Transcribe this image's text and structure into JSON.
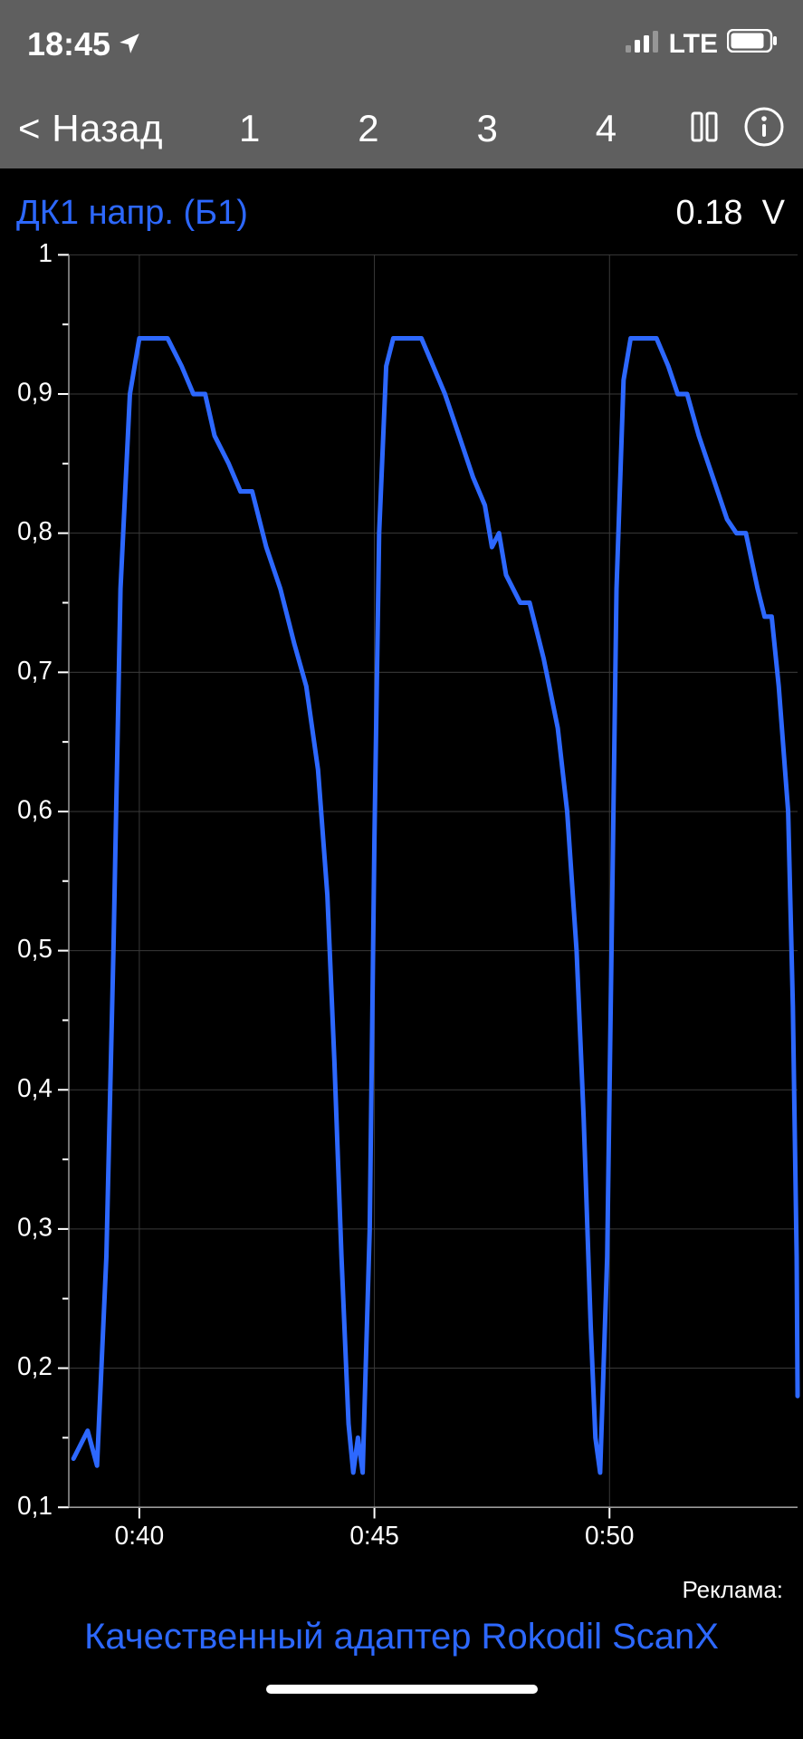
{
  "status": {
    "time": "18:45",
    "network_label": "LTE"
  },
  "nav": {
    "back_label": "< Назад",
    "tabs": [
      "1",
      "2",
      "3",
      "4"
    ]
  },
  "sensor": {
    "name": "ДК1 напр. (Б1)",
    "value": "0.18",
    "unit": "V",
    "name_color": "#2d68ff",
    "value_color": "#ffffff"
  },
  "chart": {
    "type": "line",
    "background_color": "#000000",
    "grid_color": "#3a3a3a",
    "axis_color": "#9a9a9a",
    "tick_mark_color": "#ffffff",
    "line_color": "#2d68ff",
    "line_width": 5,
    "tick_fontsize": 28,
    "ylim": [
      0.1,
      1.0
    ],
    "yticks": [
      0.1,
      0.2,
      0.3,
      0.4,
      0.5,
      0.6,
      0.7,
      0.8,
      0.9,
      1.0
    ],
    "ytick_labels": [
      "0,1",
      "0,2",
      "0,3",
      "0,4",
      "0,5",
      "0,6",
      "0,7",
      "0,8",
      "0,9",
      "1"
    ],
    "y_minor_ticks": [
      0.15,
      0.25,
      0.35,
      0.45,
      0.55,
      0.65,
      0.75,
      0.85,
      0.95
    ],
    "xlim": [
      38.5,
      54.0
    ],
    "xticks": [
      40,
      45,
      50
    ],
    "xtick_labels": [
      "0:40",
      "0:45",
      "0:50"
    ],
    "series": [
      {
        "x": 38.6,
        "y": 0.135
      },
      {
        "x": 38.9,
        "y": 0.155
      },
      {
        "x": 39.1,
        "y": 0.13
      },
      {
        "x": 39.3,
        "y": 0.28
      },
      {
        "x": 39.45,
        "y": 0.5
      },
      {
        "x": 39.6,
        "y": 0.76
      },
      {
        "x": 39.8,
        "y": 0.9
      },
      {
        "x": 40.0,
        "y": 0.94
      },
      {
        "x": 40.6,
        "y": 0.94
      },
      {
        "x": 40.9,
        "y": 0.92
      },
      {
        "x": 41.15,
        "y": 0.9
      },
      {
        "x": 41.4,
        "y": 0.9
      },
      {
        "x": 41.6,
        "y": 0.87
      },
      {
        "x": 41.9,
        "y": 0.85
      },
      {
        "x": 42.15,
        "y": 0.83
      },
      {
        "x": 42.4,
        "y": 0.83
      },
      {
        "x": 42.7,
        "y": 0.79
      },
      {
        "x": 43.0,
        "y": 0.76
      },
      {
        "x": 43.3,
        "y": 0.72
      },
      {
        "x": 43.55,
        "y": 0.69
      },
      {
        "x": 43.8,
        "y": 0.63
      },
      {
        "x": 44.0,
        "y": 0.54
      },
      {
        "x": 44.15,
        "y": 0.42
      },
      {
        "x": 44.3,
        "y": 0.28
      },
      {
        "x": 44.45,
        "y": 0.16
      },
      {
        "x": 44.55,
        "y": 0.125
      },
      {
        "x": 44.65,
        "y": 0.15
      },
      {
        "x": 44.75,
        "y": 0.125
      },
      {
        "x": 44.9,
        "y": 0.3
      },
      {
        "x": 45.0,
        "y": 0.58
      },
      {
        "x": 45.1,
        "y": 0.8
      },
      {
        "x": 45.25,
        "y": 0.92
      },
      {
        "x": 45.4,
        "y": 0.94
      },
      {
        "x": 46.0,
        "y": 0.94
      },
      {
        "x": 46.25,
        "y": 0.92
      },
      {
        "x": 46.5,
        "y": 0.9
      },
      {
        "x": 46.8,
        "y": 0.87
      },
      {
        "x": 47.1,
        "y": 0.84
      },
      {
        "x": 47.35,
        "y": 0.82
      },
      {
        "x": 47.5,
        "y": 0.79
      },
      {
        "x": 47.65,
        "y": 0.8
      },
      {
        "x": 47.8,
        "y": 0.77
      },
      {
        "x": 48.1,
        "y": 0.75
      },
      {
        "x": 48.3,
        "y": 0.75
      },
      {
        "x": 48.6,
        "y": 0.71
      },
      {
        "x": 48.9,
        "y": 0.66
      },
      {
        "x": 49.1,
        "y": 0.6
      },
      {
        "x": 49.3,
        "y": 0.5
      },
      {
        "x": 49.45,
        "y": 0.38
      },
      {
        "x": 49.6,
        "y": 0.23
      },
      {
        "x": 49.7,
        "y": 0.15
      },
      {
        "x": 49.8,
        "y": 0.125
      },
      {
        "x": 49.95,
        "y": 0.28
      },
      {
        "x": 50.05,
        "y": 0.52
      },
      {
        "x": 50.15,
        "y": 0.76
      },
      {
        "x": 50.3,
        "y": 0.91
      },
      {
        "x": 50.45,
        "y": 0.94
      },
      {
        "x": 51.0,
        "y": 0.94
      },
      {
        "x": 51.25,
        "y": 0.92
      },
      {
        "x": 51.45,
        "y": 0.9
      },
      {
        "x": 51.65,
        "y": 0.9
      },
      {
        "x": 51.9,
        "y": 0.87
      },
      {
        "x": 52.2,
        "y": 0.84
      },
      {
        "x": 52.5,
        "y": 0.81
      },
      {
        "x": 52.7,
        "y": 0.8
      },
      {
        "x": 52.9,
        "y": 0.8
      },
      {
        "x": 53.15,
        "y": 0.76
      },
      {
        "x": 53.3,
        "y": 0.74
      },
      {
        "x": 53.45,
        "y": 0.74
      },
      {
        "x": 53.6,
        "y": 0.69
      },
      {
        "x": 53.8,
        "y": 0.6
      },
      {
        "x": 53.9,
        "y": 0.46
      },
      {
        "x": 53.98,
        "y": 0.28
      },
      {
        "x": 54.0,
        "y": 0.18
      }
    ]
  },
  "footer": {
    "ad_label": "Реклама:",
    "ad_text": "Качественный адаптер Rokodil ScanX",
    "ad_color": "#2d68ff"
  }
}
